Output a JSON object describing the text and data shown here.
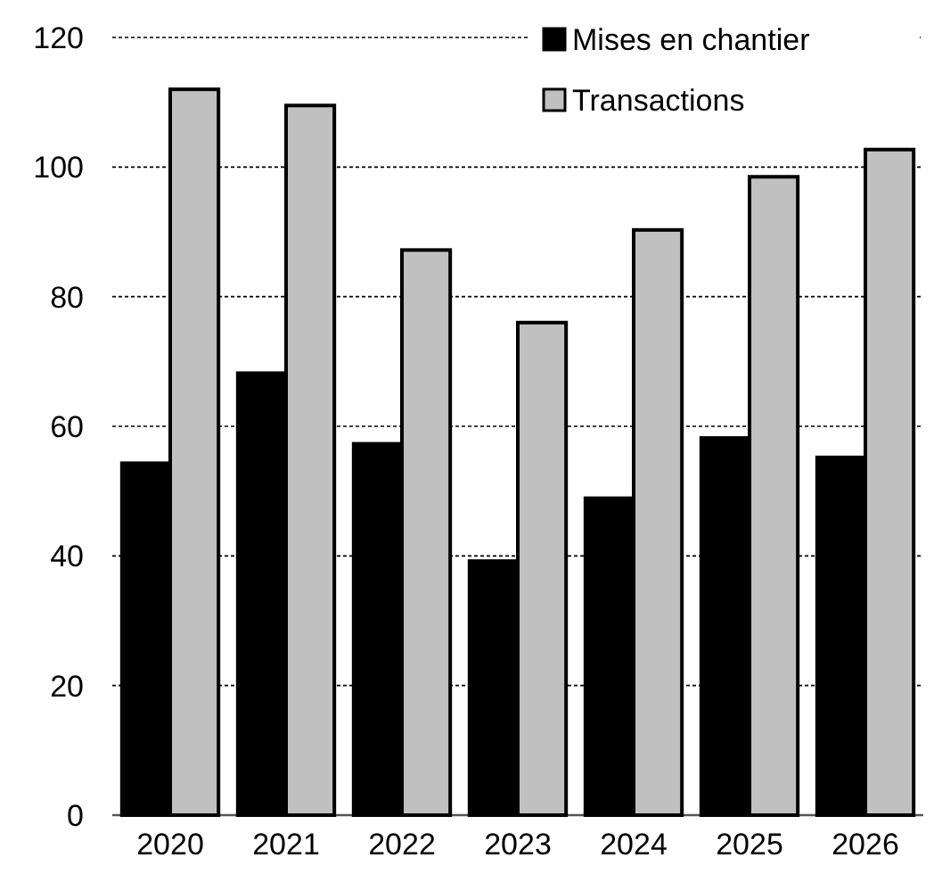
{
  "chart_data": {
    "type": "bar",
    "categories": [
      "2020",
      "2021",
      "2022",
      "2023",
      "2024",
      "2025",
      "2026"
    ],
    "series": [
      {
        "name": "Mises en chantier",
        "color": "#000000",
        "values": [
          54.3,
          68.2,
          57.3,
          39.2,
          48.9,
          58.2,
          55.2
        ]
      },
      {
        "name": "Transactions",
        "color": "#c0c0c0",
        "values": [
          112,
          109.5,
          87.2,
          76,
          90.3,
          98.5,
          102.7
        ]
      }
    ],
    "ylim": [
      0,
      120
    ],
    "yticks": [
      0,
      20,
      40,
      60,
      80,
      100,
      120
    ],
    "grid": "y",
    "legend": "top right"
  }
}
